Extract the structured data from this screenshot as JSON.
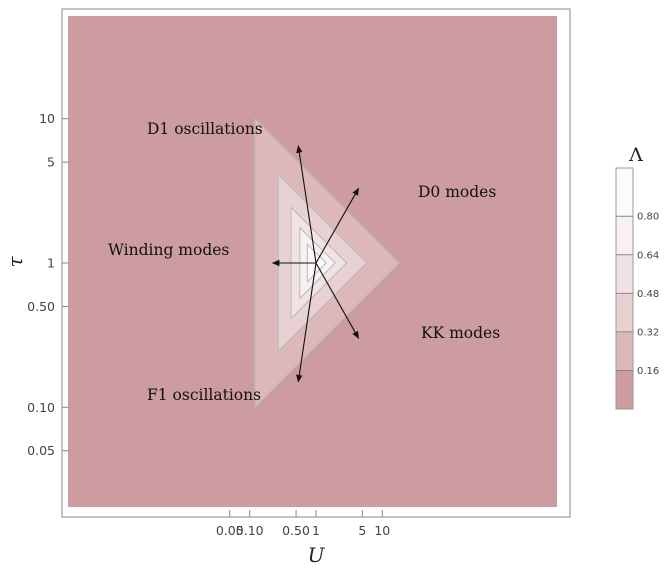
{
  "chart_data": {
    "type": "contour",
    "xlabel": "U",
    "ylabel": "τ",
    "xscale": "log",
    "yscale": "log",
    "xlim": [
      0.045,
      25
    ],
    "ylim": [
      0.045,
      22
    ],
    "x_ticks": [
      {
        "value": 0.05,
        "label": "0.05"
      },
      {
        "value": 0.1,
        "label": "0.10"
      },
      {
        "value": 0.5,
        "label": "0.50"
      },
      {
        "value": 1,
        "label": "1"
      },
      {
        "value": 5,
        "label": "5"
      },
      {
        "value": 10,
        "label": "10"
      }
    ],
    "y_ticks": [
      {
        "value": 0.05,
        "label": "0.05"
      },
      {
        "value": 0.1,
        "label": "0.10"
      },
      {
        "value": 0.5,
        "label": "0.50"
      },
      {
        "value": 1,
        "label": "1"
      },
      {
        "value": 5,
        "label": "5"
      },
      {
        "value": 10,
        "label": "10"
      }
    ],
    "legend": {
      "title": "Λ",
      "placement": "right",
      "levels": [
        0.16,
        0.32,
        0.48,
        0.64,
        0.8
      ],
      "labels": [
        "0.16",
        "0.32",
        "0.48",
        "0.64",
        "0.80"
      ],
      "colors": [
        "#cd9ca0",
        "#dcb8bb",
        "#e8d1d3",
        "#f1e3e4",
        "#f8f0f1",
        "#fdfafb"
      ]
    },
    "contours": [
      {
        "level": 0.16,
        "left_x": 0.12,
        "right_x": 18
      },
      {
        "level": 0.32,
        "left_x": 0.27,
        "right_x": 5.8
      },
      {
        "level": 0.48,
        "left_x": 0.42,
        "right_x": 2.9
      },
      {
        "level": 0.64,
        "left_x": 0.57,
        "right_x": 1.95
      },
      {
        "level": 0.8,
        "left_x": 0.74,
        "right_x": 1.42
      }
    ],
    "annotations": [
      {
        "text": "D1 oscillations",
        "arrow_to": [
          0.54,
          6.5
        ]
      },
      {
        "text": "D0 modes",
        "arrow_to": [
          4.4,
          3.3
        ]
      },
      {
        "text": "Winding modes",
        "arrow_to": [
          0.22,
          1.0
        ]
      },
      {
        "text": "KK modes",
        "arrow_to": [
          4.4,
          0.3
        ]
      },
      {
        "text": "F1 oscillations",
        "arrow_to": [
          0.54,
          0.15
        ]
      }
    ],
    "arrow_origin": [
      1,
      1
    ]
  }
}
